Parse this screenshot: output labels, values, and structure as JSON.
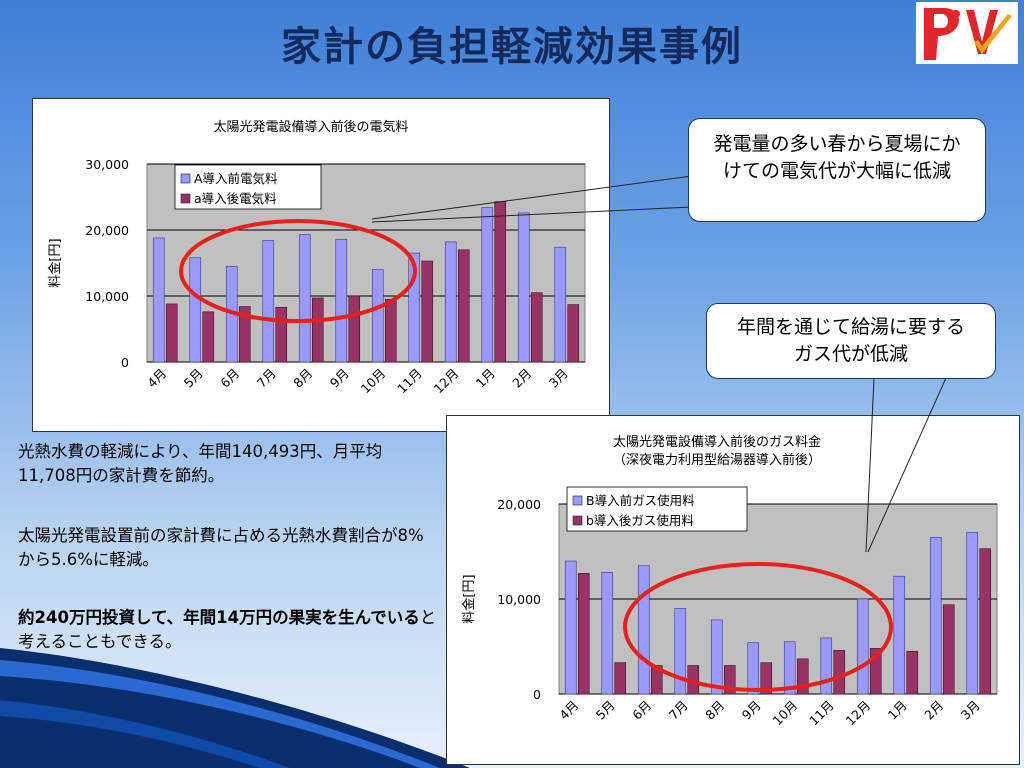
{
  "slide": {
    "title": "家計の負担軽減効果事例",
    "logo": {
      "icon": "pv-logo-icon",
      "colors": {
        "red": "#e0262a",
        "orange": "#f5a21a"
      }
    }
  },
  "callouts": {
    "spring": "発電量の多い春から夏場にかけての電気代が大幅に低減",
    "gas": "年間を通じて給湯に要するガス代が低減"
  },
  "body": {
    "p1": "光熱水費の軽減により、年間140,493円、月平均11,708円の家計費を節約。",
    "p2": "太陽光発電設置前の家計費に占める光熱水費割合が8%から5.6%に軽減。",
    "p3_bold": "約240万円投資して、年間14万円の果実を生んでいる",
    "p3_rest": "と考えることもできる。"
  },
  "colors": {
    "series_a": "#9999ff",
    "series_b": "#993366",
    "plot_bg": "#c0c0c0",
    "ellipse": "#e8201a"
  },
  "chart_data": [
    {
      "type": "bar",
      "title": "太陽光発電設備導入前後の電気料",
      "ylabel": "料金[円]",
      "ylim": [
        0,
        30000
      ],
      "yticks": [
        "0",
        "10,000",
        "20,000",
        "30,000"
      ],
      "categories": [
        "4月",
        "5月",
        "6月",
        "7月",
        "8月",
        "9月",
        "10月",
        "11月",
        "12月",
        "1月",
        "2月",
        "3月"
      ],
      "series": [
        {
          "name": "A導入前電気料",
          "values": [
            18800,
            15800,
            14500,
            18400,
            19300,
            18600,
            14000,
            16500,
            18200,
            23400,
            22600,
            17400
          ]
        },
        {
          "name": "a導入後電気料",
          "values": [
            8800,
            7600,
            8400,
            8300,
            9700,
            10000,
            9500,
            15300,
            17000,
            24300,
            10500,
            8700
          ]
        }
      ],
      "grid": true,
      "legend": "top-left"
    },
    {
      "type": "bar",
      "title": "太陽光発電設備導入前後のガス料金",
      "subtitle": "（深夜電力利用型給湯器導入前後）",
      "ylabel": "料金[円]",
      "ylim": [
        0,
        20000
      ],
      "yticks": [
        "0",
        "10,000",
        "20,000"
      ],
      "categories": [
        "4月",
        "5月",
        "6月",
        "7月",
        "8月",
        "9月",
        "10月",
        "11月",
        "12月",
        "1月",
        "2月",
        "3月"
      ],
      "series": [
        {
          "name": "B導入前ガス使用料",
          "values": [
            14000,
            12800,
            13500,
            9000,
            7800,
            5400,
            5500,
            5900,
            10000,
            12400,
            16500,
            17000
          ]
        },
        {
          "name": "b導入後ガス使用料",
          "values": [
            12700,
            3300,
            3000,
            3000,
            3000,
            3300,
            3700,
            4600,
            4800,
            4500,
            9400,
            15300
          ]
        }
      ],
      "grid": true,
      "legend": "top-left"
    }
  ]
}
